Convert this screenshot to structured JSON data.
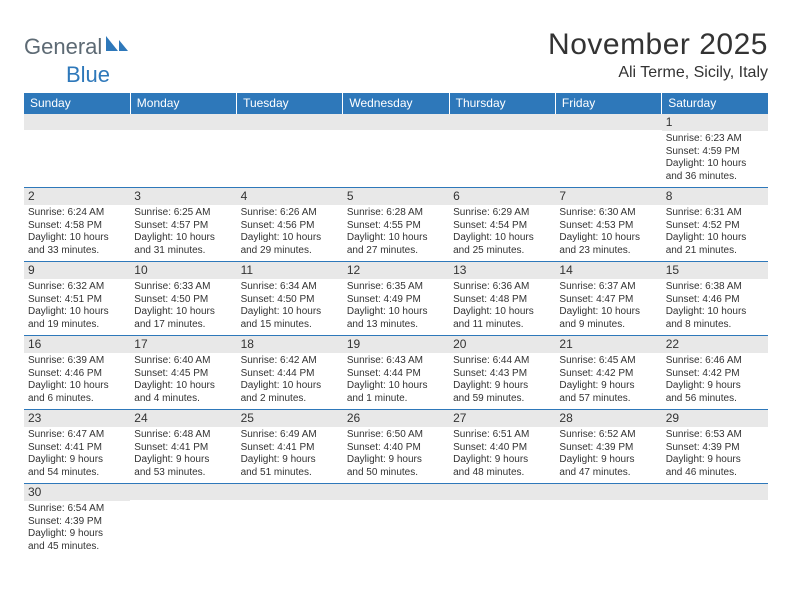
{
  "brand": {
    "general": "General",
    "blue": "Blue"
  },
  "header": {
    "title": "November 2025",
    "location": "Ali Terme, Sicily, Italy"
  },
  "colors": {
    "header_bg": "#2e78ba",
    "header_text": "#ffffff",
    "daynum_bg": "#e8e8e8",
    "cell_border": "#2e78ba",
    "body_text": "#333333",
    "logo_gray": "#5d6a74",
    "logo_blue": "#2e78ba"
  },
  "weekdays": [
    "Sunday",
    "Monday",
    "Tuesday",
    "Wednesday",
    "Thursday",
    "Friday",
    "Saturday"
  ],
  "weeks": [
    [
      null,
      null,
      null,
      null,
      null,
      null,
      {
        "n": "1",
        "sr": "Sunrise: 6:23 AM",
        "ss": "Sunset: 4:59 PM",
        "d1": "Daylight: 10 hours",
        "d2": "and 36 minutes."
      }
    ],
    [
      {
        "n": "2",
        "sr": "Sunrise: 6:24 AM",
        "ss": "Sunset: 4:58 PM",
        "d1": "Daylight: 10 hours",
        "d2": "and 33 minutes."
      },
      {
        "n": "3",
        "sr": "Sunrise: 6:25 AM",
        "ss": "Sunset: 4:57 PM",
        "d1": "Daylight: 10 hours",
        "d2": "and 31 minutes."
      },
      {
        "n": "4",
        "sr": "Sunrise: 6:26 AM",
        "ss": "Sunset: 4:56 PM",
        "d1": "Daylight: 10 hours",
        "d2": "and 29 minutes."
      },
      {
        "n": "5",
        "sr": "Sunrise: 6:28 AM",
        "ss": "Sunset: 4:55 PM",
        "d1": "Daylight: 10 hours",
        "d2": "and 27 minutes."
      },
      {
        "n": "6",
        "sr": "Sunrise: 6:29 AM",
        "ss": "Sunset: 4:54 PM",
        "d1": "Daylight: 10 hours",
        "d2": "and 25 minutes."
      },
      {
        "n": "7",
        "sr": "Sunrise: 6:30 AM",
        "ss": "Sunset: 4:53 PM",
        "d1": "Daylight: 10 hours",
        "d2": "and 23 minutes."
      },
      {
        "n": "8",
        "sr": "Sunrise: 6:31 AM",
        "ss": "Sunset: 4:52 PM",
        "d1": "Daylight: 10 hours",
        "d2": "and 21 minutes."
      }
    ],
    [
      {
        "n": "9",
        "sr": "Sunrise: 6:32 AM",
        "ss": "Sunset: 4:51 PM",
        "d1": "Daylight: 10 hours",
        "d2": "and 19 minutes."
      },
      {
        "n": "10",
        "sr": "Sunrise: 6:33 AM",
        "ss": "Sunset: 4:50 PM",
        "d1": "Daylight: 10 hours",
        "d2": "and 17 minutes."
      },
      {
        "n": "11",
        "sr": "Sunrise: 6:34 AM",
        "ss": "Sunset: 4:50 PM",
        "d1": "Daylight: 10 hours",
        "d2": "and 15 minutes."
      },
      {
        "n": "12",
        "sr": "Sunrise: 6:35 AM",
        "ss": "Sunset: 4:49 PM",
        "d1": "Daylight: 10 hours",
        "d2": "and 13 minutes."
      },
      {
        "n": "13",
        "sr": "Sunrise: 6:36 AM",
        "ss": "Sunset: 4:48 PM",
        "d1": "Daylight: 10 hours",
        "d2": "and 11 minutes."
      },
      {
        "n": "14",
        "sr": "Sunrise: 6:37 AM",
        "ss": "Sunset: 4:47 PM",
        "d1": "Daylight: 10 hours",
        "d2": "and 9 minutes."
      },
      {
        "n": "15",
        "sr": "Sunrise: 6:38 AM",
        "ss": "Sunset: 4:46 PM",
        "d1": "Daylight: 10 hours",
        "d2": "and 8 minutes."
      }
    ],
    [
      {
        "n": "16",
        "sr": "Sunrise: 6:39 AM",
        "ss": "Sunset: 4:46 PM",
        "d1": "Daylight: 10 hours",
        "d2": "and 6 minutes."
      },
      {
        "n": "17",
        "sr": "Sunrise: 6:40 AM",
        "ss": "Sunset: 4:45 PM",
        "d1": "Daylight: 10 hours",
        "d2": "and 4 minutes."
      },
      {
        "n": "18",
        "sr": "Sunrise: 6:42 AM",
        "ss": "Sunset: 4:44 PM",
        "d1": "Daylight: 10 hours",
        "d2": "and 2 minutes."
      },
      {
        "n": "19",
        "sr": "Sunrise: 6:43 AM",
        "ss": "Sunset: 4:44 PM",
        "d1": "Daylight: 10 hours",
        "d2": "and 1 minute."
      },
      {
        "n": "20",
        "sr": "Sunrise: 6:44 AM",
        "ss": "Sunset: 4:43 PM",
        "d1": "Daylight: 9 hours",
        "d2": "and 59 minutes."
      },
      {
        "n": "21",
        "sr": "Sunrise: 6:45 AM",
        "ss": "Sunset: 4:42 PM",
        "d1": "Daylight: 9 hours",
        "d2": "and 57 minutes."
      },
      {
        "n": "22",
        "sr": "Sunrise: 6:46 AM",
        "ss": "Sunset: 4:42 PM",
        "d1": "Daylight: 9 hours",
        "d2": "and 56 minutes."
      }
    ],
    [
      {
        "n": "23",
        "sr": "Sunrise: 6:47 AM",
        "ss": "Sunset: 4:41 PM",
        "d1": "Daylight: 9 hours",
        "d2": "and 54 minutes."
      },
      {
        "n": "24",
        "sr": "Sunrise: 6:48 AM",
        "ss": "Sunset: 4:41 PM",
        "d1": "Daylight: 9 hours",
        "d2": "and 53 minutes."
      },
      {
        "n": "25",
        "sr": "Sunrise: 6:49 AM",
        "ss": "Sunset: 4:41 PM",
        "d1": "Daylight: 9 hours",
        "d2": "and 51 minutes."
      },
      {
        "n": "26",
        "sr": "Sunrise: 6:50 AM",
        "ss": "Sunset: 4:40 PM",
        "d1": "Daylight: 9 hours",
        "d2": "and 50 minutes."
      },
      {
        "n": "27",
        "sr": "Sunrise: 6:51 AM",
        "ss": "Sunset: 4:40 PM",
        "d1": "Daylight: 9 hours",
        "d2": "and 48 minutes."
      },
      {
        "n": "28",
        "sr": "Sunrise: 6:52 AM",
        "ss": "Sunset: 4:39 PM",
        "d1": "Daylight: 9 hours",
        "d2": "and 47 minutes."
      },
      {
        "n": "29",
        "sr": "Sunrise: 6:53 AM",
        "ss": "Sunset: 4:39 PM",
        "d1": "Daylight: 9 hours",
        "d2": "and 46 minutes."
      }
    ],
    [
      {
        "n": "30",
        "sr": "Sunrise: 6:54 AM",
        "ss": "Sunset: 4:39 PM",
        "d1": "Daylight: 9 hours",
        "d2": "and 45 minutes."
      },
      null,
      null,
      null,
      null,
      null,
      null
    ]
  ]
}
